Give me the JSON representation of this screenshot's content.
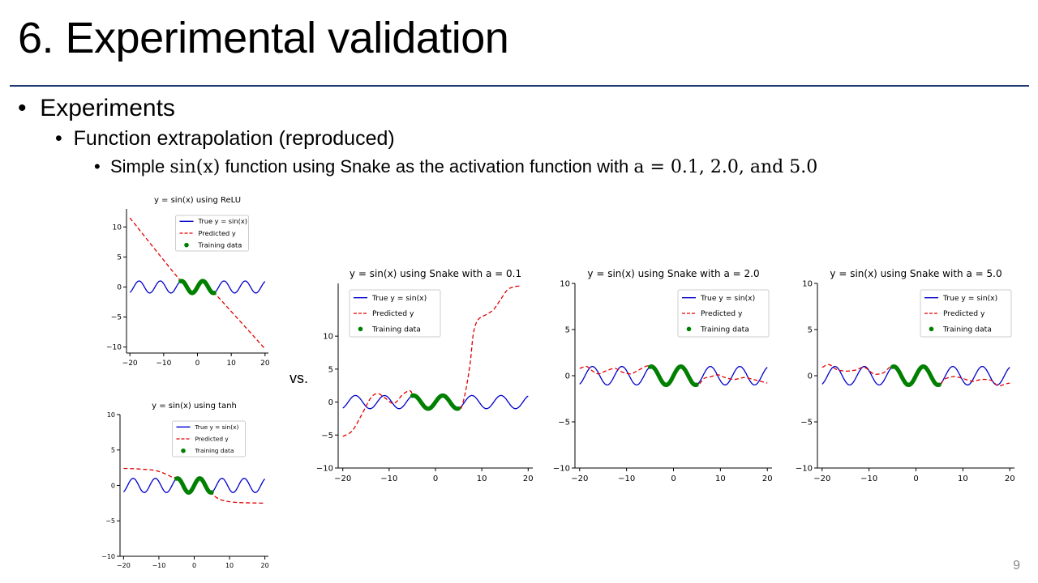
{
  "slide": {
    "title": "6. Experimental validation",
    "bullet1": "Experiments",
    "bullet2": "Function extrapolation (reproduced)",
    "bullet3_pre": "Simple",
    "bullet3_math1": "sin(x)",
    "bullet3_mid": "function using Snake as the activation function with",
    "bullet3_math2": "a = 0.1, 2.0, and 5.0",
    "vs_label": "vs.",
    "page_number": "9"
  },
  "colors": {
    "true": "#0000cc",
    "predicted": "#e00000",
    "training": "#008000",
    "rule": "#1f3a6e"
  },
  "chart_data": [
    {
      "id": "relu",
      "type": "line",
      "title": "y = sin(x) using ReLU",
      "xlim": [
        -21,
        21
      ],
      "ylim": [
        -11,
        13
      ],
      "xticks": [
        -20,
        -10,
        0,
        10,
        20
      ],
      "yticks": [
        -10,
        -5,
        0,
        5,
        10
      ],
      "legend": [
        "True y = sin(x)",
        "Predicted y",
        "Training data"
      ],
      "legend_loc": "upper-center",
      "series": [
        {
          "name": "True y = sin(x)",
          "style": "solid",
          "func": "sin",
          "domain": [
            -20,
            20
          ]
        },
        {
          "name": "Predicted y",
          "style": "dashed",
          "points": [
            [
              -20,
              11.5
            ],
            [
              -6,
              1.7
            ],
            [
              -4,
              0.9
            ],
            [
              -1.5,
              -1.1
            ],
            [
              1.5,
              1.0
            ],
            [
              4.7,
              -1.0
            ],
            [
              6,
              -1.6
            ],
            [
              20,
              -10.3
            ]
          ]
        },
        {
          "name": "Training data",
          "style": "markers",
          "func": "sin",
          "domain": [
            -5,
            5
          ]
        }
      ]
    },
    {
      "id": "tanh",
      "type": "line",
      "title": "y = sin(x) using tanh",
      "xlim": [
        -21,
        21
      ],
      "ylim": [
        -10,
        10
      ],
      "xticks": [
        -20,
        -10,
        0,
        10,
        20
      ],
      "yticks": [
        -10,
        -5,
        0,
        5,
        10
      ],
      "legend": [
        "True y = sin(x)",
        "Predicted y",
        "Training data"
      ],
      "legend_loc": "upper-center",
      "series": [
        {
          "name": "True y = sin(x)",
          "style": "solid",
          "func": "sin",
          "domain": [
            -20,
            20
          ]
        },
        {
          "name": "Predicted y",
          "style": "dashed",
          "points": [
            [
              -20,
              2.4
            ],
            [
              -15,
              2.3
            ],
            [
              -11,
              2.1
            ],
            [
              -8,
              1.6
            ],
            [
              -6,
              1.1
            ],
            [
              -4.7,
              1.0
            ],
            [
              -1.5,
              -1.0
            ],
            [
              1.5,
              1.0
            ],
            [
              4.7,
              -1.0
            ],
            [
              6,
              -1.6
            ],
            [
              8,
              -2.1
            ],
            [
              12,
              -2.4
            ],
            [
              20,
              -2.5
            ]
          ]
        },
        {
          "name": "Training data",
          "style": "markers",
          "func": "sin",
          "domain": [
            -5,
            5
          ]
        }
      ]
    },
    {
      "id": "snake01",
      "type": "line",
      "title": "y = sin(x) using Snake with a = 0.1",
      "xlim": [
        -21,
        21
      ],
      "ylim": [
        -10,
        18
      ],
      "xticks": [
        -20,
        -10,
        0,
        10,
        20
      ],
      "yticks": [
        -10,
        -5,
        0,
        5,
        10
      ],
      "legend": [
        "True y = sin(x)",
        "Predicted y",
        "Training data"
      ],
      "legend_loc": "upper-left",
      "series": [
        {
          "name": "True y = sin(x)",
          "style": "solid",
          "func": "sin",
          "domain": [
            -20,
            20
          ]
        },
        {
          "name": "Predicted y",
          "style": "dashed",
          "points": [
            [
              -20,
              -5.2
            ],
            [
              -18,
              -4.4
            ],
            [
              -16,
              -2.0
            ],
            [
              -14,
              0.6
            ],
            [
              -12.5,
              1.3
            ],
            [
              -11,
              0.7
            ],
            [
              -9,
              -0.2
            ],
            [
              -7,
              1.2
            ],
            [
              -5.5,
              1.7
            ],
            [
              -4.7,
              1.0
            ],
            [
              -1.5,
              -1.0
            ],
            [
              1.5,
              1.0
            ],
            [
              4.7,
              -1.0
            ],
            [
              5.6,
              -0.8
            ],
            [
              6.6,
              2.0
            ],
            [
              7.5,
              6.0
            ],
            [
              8.2,
              10.5
            ],
            [
              9.2,
              12.5
            ],
            [
              11,
              13.3
            ],
            [
              12.5,
              14.0
            ],
            [
              14,
              15.5
            ],
            [
              15.5,
              17.0
            ],
            [
              17,
              17.5
            ],
            [
              18.5,
              17.6
            ]
          ]
        },
        {
          "name": "Training data",
          "style": "markers",
          "func": "sin",
          "domain": [
            -5,
            5
          ]
        }
      ]
    },
    {
      "id": "snake2",
      "type": "line",
      "title": "y = sin(x) using Snake with a = 2.0",
      "xlim": [
        -21,
        21
      ],
      "ylim": [
        -10,
        10
      ],
      "xticks": [
        -20,
        -10,
        0,
        10,
        20
      ],
      "yticks": [
        -10,
        -5,
        0,
        5,
        10
      ],
      "legend": [
        "True y = sin(x)",
        "Predicted y",
        "Training data"
      ],
      "legend_loc": "upper-right",
      "series": [
        {
          "name": "True y = sin(x)",
          "style": "solid",
          "func": "sin",
          "domain": [
            -20,
            20
          ]
        },
        {
          "name": "Predicted y",
          "style": "dashed",
          "points": [
            [
              -20,
              0.8
            ],
            [
              -18.5,
              1.0
            ],
            [
              -17.5,
              0.6
            ],
            [
              -16,
              0.2
            ],
            [
              -14.5,
              0.5
            ],
            [
              -12.5,
              0.8
            ],
            [
              -11,
              0.4
            ],
            [
              -9,
              0.2
            ],
            [
              -7.5,
              0.6
            ],
            [
              -4.7,
              1.0
            ],
            [
              -1.5,
              -1.0
            ],
            [
              1.5,
              1.0
            ],
            [
              4.7,
              -1.0
            ],
            [
              6.5,
              -0.3
            ],
            [
              8,
              -0.1
            ],
            [
              9.5,
              0.1
            ],
            [
              11,
              -0.2
            ],
            [
              13,
              -0.4
            ],
            [
              15,
              -0.2
            ],
            [
              17,
              -0.4
            ],
            [
              18.5,
              -0.6
            ],
            [
              20,
              -0.8
            ]
          ]
        },
        {
          "name": "Training data",
          "style": "markers",
          "func": "sin",
          "domain": [
            -5,
            5
          ]
        }
      ]
    },
    {
      "id": "snake5",
      "type": "line",
      "title": "y = sin(x) using Snake with a = 5.0",
      "xlim": [
        -21,
        21
      ],
      "ylim": [
        -10,
        10
      ],
      "xticks": [
        -20,
        -10,
        0,
        10,
        20
      ],
      "yticks": [
        -10,
        -5,
        0,
        5,
        10
      ],
      "legend": [
        "True y = sin(x)",
        "Predicted y",
        "Training data"
      ],
      "legend_loc": "upper-right",
      "series": [
        {
          "name": "True y = sin(x)",
          "style": "solid",
          "func": "sin",
          "domain": [
            -20,
            20
          ]
        },
        {
          "name": "Predicted y",
          "style": "dashed",
          "points": [
            [
              -20,
              0.9
            ],
            [
              -18.5,
              1.2
            ],
            [
              -17,
              0.7
            ],
            [
              -15,
              0.5
            ],
            [
              -13,
              0.6
            ],
            [
              -11,
              0.9
            ],
            [
              -9,
              0.2
            ],
            [
              -7,
              0.3
            ],
            [
              -4.7,
              1.0
            ],
            [
              -1.5,
              -1.0
            ],
            [
              1.5,
              1.0
            ],
            [
              4.7,
              -1.0
            ],
            [
              6,
              -0.4
            ],
            [
              8,
              -0.1
            ],
            [
              10,
              -0.3
            ],
            [
              12,
              -0.6
            ],
            [
              14,
              -0.4
            ],
            [
              16,
              -0.5
            ],
            [
              17.5,
              -1.1
            ],
            [
              19,
              -0.9
            ],
            [
              20,
              -0.8
            ]
          ]
        },
        {
          "name": "Training data",
          "style": "markers",
          "func": "sin",
          "domain": [
            -5,
            5
          ]
        }
      ]
    }
  ]
}
